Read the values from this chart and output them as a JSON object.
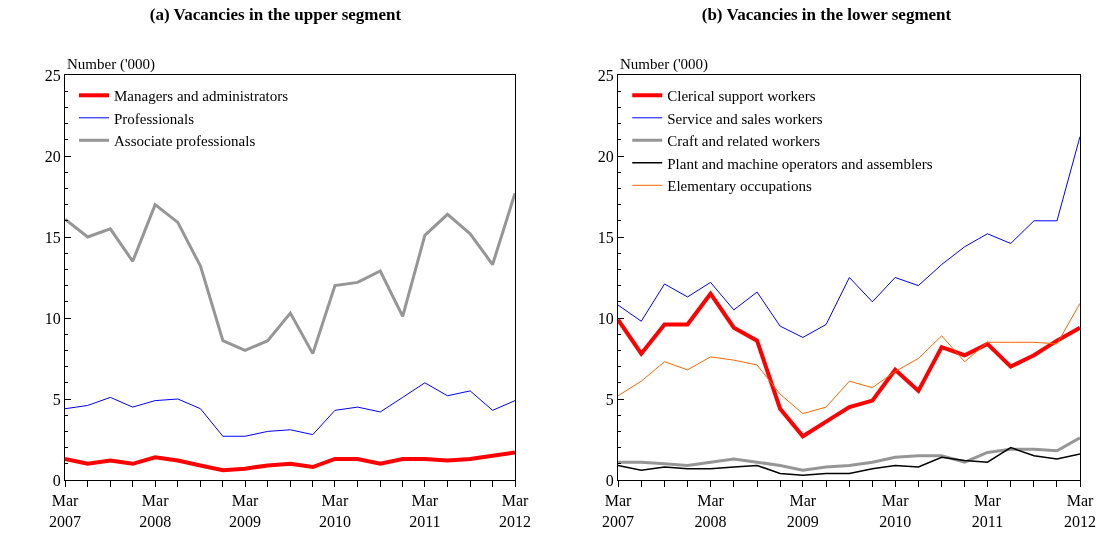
{
  "chart_data": [
    {
      "type": "line",
      "title": "(a) Vacancies in the upper segment",
      "ylabel": "Number ('000)",
      "x": [
        "2007-03",
        "2007-06",
        "2007-09",
        "2007-12",
        "2008-03",
        "2008-06",
        "2008-09",
        "2008-12",
        "2009-03",
        "2009-06",
        "2009-09",
        "2009-12",
        "2010-03",
        "2010-06",
        "2010-09",
        "2010-12",
        "2011-03",
        "2011-06",
        "2011-09",
        "2011-12",
        "2012-03"
      ],
      "series": [
        {
          "name": "Managers and administrators",
          "color": "#ff0000",
          "values": [
            1.3,
            1.0,
            1.2,
            1.0,
            1.4,
            1.2,
            0.9,
            0.6,
            0.7,
            0.9,
            1.0,
            0.8,
            1.3,
            1.3,
            1.0,
            1.3,
            1.3,
            1.2,
            1.3,
            1.5,
            1.7
          ]
        },
        {
          "name": "Professionals",
          "color": "#0000ff",
          "values": [
            4.4,
            4.6,
            5.1,
            4.5,
            4.9,
            5.0,
            4.4,
            2.7,
            2.7,
            3.0,
            3.1,
            2.8,
            4.3,
            4.5,
            4.2,
            5.1,
            6.0,
            5.2,
            5.5,
            4.3,
            4.9
          ]
        },
        {
          "name": "Associate professionals",
          "color": "#969696",
          "values": [
            16.1,
            15.0,
            15.5,
            13.5,
            17.0,
            15.9,
            13.2,
            8.6,
            8.0,
            8.6,
            10.3,
            7.8,
            12.0,
            12.2,
            12.9,
            10.1,
            15.1,
            16.4,
            15.2,
            13.3,
            17.7
          ]
        }
      ],
      "xlim": [
        "2007-03",
        "2012-03"
      ],
      "xticks": [
        {
          "value": "2007-03",
          "label": "Mar\n2007"
        },
        {
          "value": "2007-06",
          "label": null
        },
        {
          "value": "2007-09",
          "label": null
        },
        {
          "value": "2007-12",
          "label": null
        },
        {
          "value": "2008-03",
          "label": "Mar\n2008"
        },
        {
          "value": "2008-06",
          "label": null
        },
        {
          "value": "2008-09",
          "label": null
        },
        {
          "value": "2008-12",
          "label": null
        },
        {
          "value": "2009-03",
          "label": "Mar\n2009"
        },
        {
          "value": "2009-06",
          "label": null
        },
        {
          "value": "2009-09",
          "label": null
        },
        {
          "value": "2009-12",
          "label": null
        },
        {
          "value": "2010-03",
          "label": "Mar\n2010"
        },
        {
          "value": "2010-06",
          "label": null
        },
        {
          "value": "2010-09",
          "label": null
        },
        {
          "value": "2010-12",
          "label": null
        },
        {
          "value": "2011-03",
          "label": "Mar\n2011"
        },
        {
          "value": "2011-06",
          "label": null
        },
        {
          "value": "2011-09",
          "label": null
        },
        {
          "value": "2011-12",
          "label": null
        },
        {
          "value": "2012-03",
          "label": "Mar\n2012"
        }
      ],
      "ylim": [
        0,
        25
      ],
      "yticks": [
        0,
        5,
        10,
        15,
        20,
        25
      ],
      "grid": false,
      "legend": "top left",
      "marker": "none",
      "line_style": "solid"
    },
    {
      "type": "line",
      "title": "(b) Vacancies in the lower segment",
      "ylabel": "Number ('000)",
      "x": [
        "2007-03",
        "2007-06",
        "2007-09",
        "2007-12",
        "2008-03",
        "2008-06",
        "2008-09",
        "2008-12",
        "2009-03",
        "2009-06",
        "2009-09",
        "2009-12",
        "2010-03",
        "2010-06",
        "2010-09",
        "2010-12",
        "2011-03",
        "2011-06",
        "2011-09",
        "2011-12",
        "2012-03"
      ],
      "series": [
        {
          "name": "Clerical support workers",
          "color": "#ff0000",
          "values": [
            9.9,
            7.8,
            9.6,
            9.6,
            11.5,
            9.4,
            8.6,
            4.4,
            2.7,
            3.6,
            4.5,
            4.9,
            6.8,
            5.5,
            8.2,
            7.7,
            8.4,
            7.0,
            7.7,
            8.6,
            9.4
          ]
        },
        {
          "name": "Service and sales workers",
          "color": "#0000ff",
          "values": [
            10.8,
            9.8,
            12.1,
            11.3,
            12.2,
            10.5,
            11.6,
            9.5,
            8.8,
            9.6,
            12.5,
            11.0,
            12.5,
            12.0,
            13.3,
            14.4,
            15.2,
            14.6,
            16.0,
            16.0,
            21.2
          ]
        },
        {
          "name": "Craft and related workers",
          "color": "#969696",
          "values": [
            1.1,
            1.1,
            1.0,
            0.9,
            1.1,
            1.3,
            1.1,
            0.9,
            0.6,
            0.8,
            0.9,
            1.1,
            1.4,
            1.5,
            1.5,
            1.1,
            1.7,
            1.9,
            1.9,
            1.8,
            2.6
          ]
        },
        {
          "name": "Plant and machine operators and assemblers",
          "color": "#000000",
          "values": [
            0.9,
            0.6,
            0.8,
            0.7,
            0.7,
            0.8,
            0.9,
            0.4,
            0.3,
            0.4,
            0.4,
            0.7,
            0.9,
            0.8,
            1.4,
            1.2,
            1.1,
            2.0,
            1.5,
            1.3,
            1.6
          ]
        },
        {
          "name": "Elementary occupations",
          "color": "#ff6600",
          "values": [
            5.2,
            6.1,
            7.3,
            6.8,
            7.6,
            7.4,
            7.1,
            5.3,
            4.1,
            4.5,
            6.1,
            5.7,
            6.7,
            7.5,
            8.9,
            7.3,
            8.5,
            8.5,
            8.5,
            8.4,
            10.9
          ]
        }
      ],
      "xlim": [
        "2007-03",
        "2012-03"
      ],
      "xticks": [
        {
          "value": "2007-03",
          "label": "Mar\n2007"
        },
        {
          "value": "2007-06",
          "label": null
        },
        {
          "value": "2007-09",
          "label": null
        },
        {
          "value": "2007-12",
          "label": null
        },
        {
          "value": "2008-03",
          "label": "Mar\n2008"
        },
        {
          "value": "2008-06",
          "label": null
        },
        {
          "value": "2008-09",
          "label": null
        },
        {
          "value": "2008-12",
          "label": null
        },
        {
          "value": "2009-03",
          "label": "Mar\n2009"
        },
        {
          "value": "2009-06",
          "label": null
        },
        {
          "value": "2009-09",
          "label": null
        },
        {
          "value": "2009-12",
          "label": null
        },
        {
          "value": "2010-03",
          "label": "Mar\n2010"
        },
        {
          "value": "2010-06",
          "label": null
        },
        {
          "value": "2010-09",
          "label": null
        },
        {
          "value": "2010-12",
          "label": null
        },
        {
          "value": "2011-03",
          "label": "Mar\n2011"
        },
        {
          "value": "2011-06",
          "label": null
        },
        {
          "value": "2011-09",
          "label": null
        },
        {
          "value": "2011-12",
          "label": null
        },
        {
          "value": "2012-03",
          "label": "Mar\n2012"
        }
      ],
      "ylim": [
        0,
        25
      ],
      "yticks": [
        0,
        5,
        10,
        15,
        20,
        25
      ],
      "grid": false,
      "legend": "top left",
      "marker": "none",
      "line_style": "solid"
    }
  ]
}
